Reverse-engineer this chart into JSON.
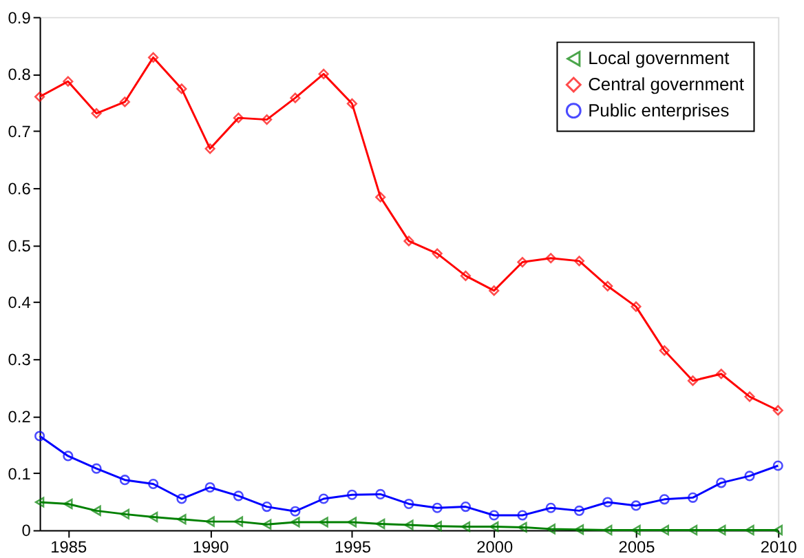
{
  "chart_data": {
    "type": "line",
    "x": [
      1984,
      1985,
      1986,
      1987,
      1988,
      1989,
      1990,
      1991,
      1992,
      1993,
      1994,
      1995,
      1996,
      1997,
      1998,
      1999,
      2000,
      2001,
      2002,
      2003,
      2004,
      2005,
      2006,
      2007,
      2008,
      2009,
      2010
    ],
    "series": [
      {
        "name": "Local government",
        "color": "#008000",
        "marker": "triangle",
        "values": [
          0.049,
          0.046,
          0.034,
          0.028,
          0.023,
          0.019,
          0.015,
          0.015,
          0.01,
          0.014,
          0.014,
          0.014,
          0.011,
          0.009,
          0.007,
          0.006,
          0.006,
          0.005,
          0.002,
          0.001,
          0,
          0,
          0,
          0,
          0,
          0,
          0
        ]
      },
      {
        "name": "Central government",
        "color": "#ff0000",
        "marker": "diamond",
        "values": [
          0.76,
          0.787,
          0.731,
          0.751,
          0.829,
          0.774,
          0.669,
          0.723,
          0.72,
          0.758,
          0.8,
          0.748,
          0.584,
          0.507,
          0.485,
          0.446,
          0.42,
          0.47,
          0.477,
          0.472,
          0.428,
          0.392,
          0.315,
          0.262,
          0.274,
          0.234,
          0.21
        ]
      },
      {
        "name": "Public enterprises",
        "color": "#0000ff",
        "marker": "circle",
        "values": [
          0.165,
          0.13,
          0.108,
          0.088,
          0.081,
          0.055,
          0.075,
          0.06,
          0.041,
          0.033,
          0.055,
          0.062,
          0.063,
          0.046,
          0.039,
          0.041,
          0.026,
          0.026,
          0.039,
          0.034,
          0.049,
          0.043,
          0.054,
          0.057,
          0.083,
          0.095,
          0.113
        ]
      }
    ],
    "xlim": [
      1984,
      2010
    ],
    "xticks": [
      1985,
      1990,
      1995,
      2000,
      2005,
      2010
    ],
    "ylim": [
      0,
      0.9
    ],
    "yticks": [
      0,
      0.1,
      0.2,
      0.3,
      0.4,
      0.5,
      0.6,
      0.7,
      0.8,
      0.9
    ],
    "grid": false,
    "legend": "top right",
    "line_style": "solid"
  }
}
